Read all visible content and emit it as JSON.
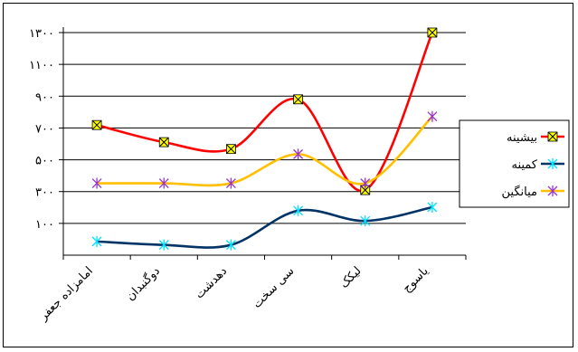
{
  "chart_data": {
    "type": "line",
    "categories": [
      "امامزاده جعفر",
      "دوگنبدان",
      "دهدشت",
      "سی سخت",
      "لیکک",
      "یاسوج"
    ],
    "y_ticks": [
      "۱۰۰",
      "۳۰۰",
      "۵۰۰",
      "۷۰۰",
      "۹۰۰",
      "۱۱۰۰",
      "۱۳۰۰"
    ],
    "ylim": [
      0,
      1300
    ],
    "grid": true,
    "legend_position": "right",
    "smooth": true,
    "series": [
      {
        "name": "بیشینه",
        "color": "#ff0000",
        "marker": "x-box",
        "marker_color": "#ffff00",
        "values": [
          760,
          660,
          620,
          910,
          380,
          1300
        ]
      },
      {
        "name": "کمینه",
        "color": "#003366",
        "marker": "asterisk",
        "marker_color": "#00e0ff",
        "values": [
          80,
          60,
          60,
          260,
          200,
          280
        ]
      },
      {
        "name": "میانگین",
        "color": "#ffc000",
        "marker": "asterisk",
        "marker_color": "#9933cc",
        "values": [
          420,
          420,
          420,
          590,
          420,
          810
        ]
      }
    ]
  }
}
